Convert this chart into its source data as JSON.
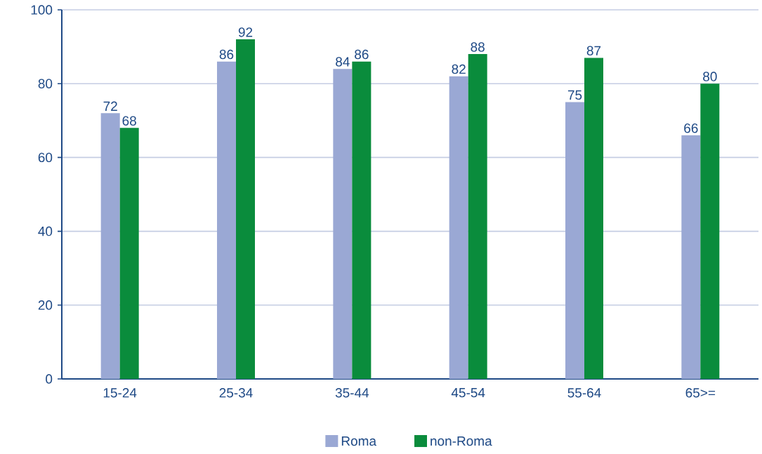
{
  "chart_data": {
    "type": "bar",
    "categories": [
      "15-24",
      "25-34",
      "35-44",
      "45-54",
      "55-64",
      "65>="
    ],
    "series": [
      {
        "name": "Roma",
        "color": "#9aa8d4",
        "values": [
          72,
          86,
          84,
          82,
          75,
          66
        ]
      },
      {
        "name": "non-Roma",
        "color": "#0a8c3c",
        "values": [
          68,
          92,
          86,
          88,
          87,
          80
        ]
      }
    ],
    "ylim": [
      0,
      100
    ],
    "yticks": [
      0,
      20,
      40,
      60,
      80,
      100
    ],
    "grid": "y",
    "legend": "bottom",
    "data_labels": true
  }
}
